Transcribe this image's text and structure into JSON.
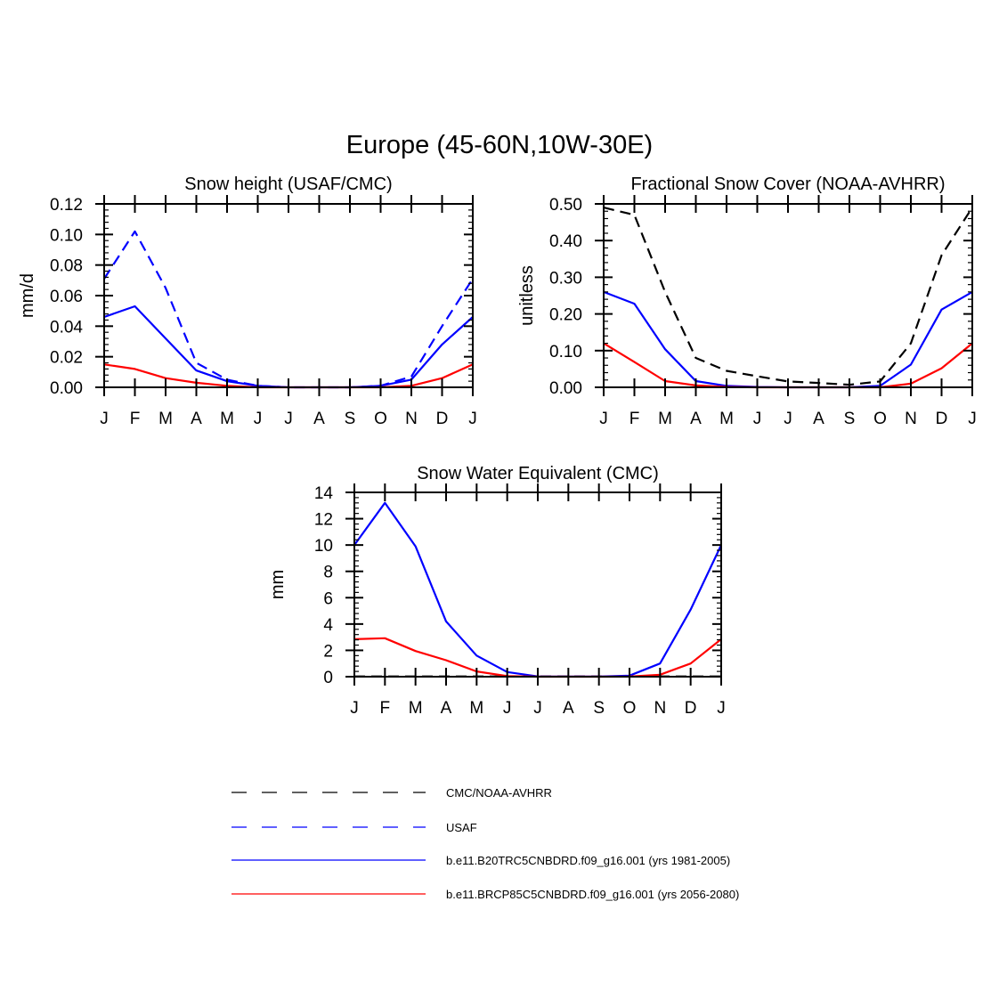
{
  "figure_title": "Europe (45-60N,10W-30E)",
  "legend": [
    {
      "label": "CMC/NOAA-AVHRR",
      "color": "#000000",
      "dash": "long"
    },
    {
      "label": "USAF",
      "color": "#0000ff",
      "dash": "long"
    },
    {
      "label": "b.e11.B20TRC5CNBDRD.f09_g16.001 (yrs 1981-2005)",
      "color": "#0000ff",
      "dash": "solid"
    },
    {
      "label": "b.e11.BRCP85C5CNBDRD.f09_g16.001 (yrs 2056-2080)",
      "color": "#ff0000",
      "dash": "solid"
    }
  ],
  "chart_data": [
    {
      "type": "line",
      "title": "Snow height (USAF/CMC)",
      "xlabel": "",
      "ylabel": "mm/d",
      "categories": [
        "J",
        "F",
        "M",
        "A",
        "M",
        "J",
        "J",
        "A",
        "S",
        "O",
        "N",
        "D",
        "J"
      ],
      "ylim": [
        0,
        0.12
      ],
      "yticks": [
        "0.00",
        "0.02",
        "0.04",
        "0.06",
        "0.08",
        "0.10",
        "0.12"
      ],
      "series": [
        {
          "name": "USAF",
          "color": "#0000ff",
          "dash": "dashed",
          "values": [
            0.071,
            0.102,
            0.065,
            0.016,
            0.005,
            0.001,
            0.0,
            0.0,
            0.0,
            0.001,
            0.007,
            0.04,
            0.071
          ]
        },
        {
          "name": "b.e11.B20TRC5CNBDRD.f09_g16.001 (yrs 1981-2005)",
          "color": "#0000ff",
          "dash": "solid",
          "values": [
            0.046,
            0.053,
            0.032,
            0.011,
            0.004,
            0.001,
            0.0,
            0.0,
            0.0,
            0.001,
            0.005,
            0.028,
            0.046
          ]
        },
        {
          "name": "b.e11.BRCP85C5CNBDRD.f09_g16.001 (yrs 2056-2080)",
          "color": "#ff0000",
          "dash": "solid",
          "values": [
            0.015,
            0.012,
            0.006,
            0.003,
            0.001,
            0.0,
            0.0,
            0.0,
            0.0,
            0.0,
            0.001,
            0.006,
            0.015
          ]
        }
      ]
    },
    {
      "type": "line",
      "title": "Fractional Snow Cover (NOAA-AVHRR)",
      "xlabel": "",
      "ylabel": "unitless",
      "categories": [
        "J",
        "F",
        "M",
        "A",
        "M",
        "J",
        "J",
        "A",
        "S",
        "O",
        "N",
        "D",
        "J"
      ],
      "ylim": [
        0,
        0.5
      ],
      "yticks": [
        "0.00",
        "0.10",
        "0.20",
        "0.30",
        "0.40",
        "0.50"
      ],
      "series": [
        {
          "name": "CMC/NOAA-AVHRR",
          "color": "#000000",
          "dash": "dashed",
          "values": [
            0.49,
            0.47,
            0.26,
            0.08,
            0.045,
            0.03,
            0.016,
            0.012,
            0.007,
            0.016,
            0.12,
            0.36,
            0.49
          ]
        },
        {
          "name": "b.e11.B20TRC5CNBDRD.f09_g16.001 (yrs 1981-2005)",
          "color": "#0000ff",
          "dash": "solid",
          "values": [
            0.26,
            0.228,
            0.104,
            0.017,
            0.004,
            0.001,
            0.0,
            0.0,
            0.0,
            0.004,
            0.062,
            0.212,
            0.26
          ]
        },
        {
          "name": "b.e11.BRCP85C5CNBDRD.f09_g16.001 (yrs 2056-2080)",
          "color": "#ff0000",
          "dash": "solid",
          "values": [
            0.12,
            0.069,
            0.017,
            0.005,
            0.001,
            0.0,
            0.0,
            0.0,
            0.0,
            0.0,
            0.01,
            0.052,
            0.12
          ]
        }
      ]
    },
    {
      "type": "line",
      "title": "Snow Water Equivalent (CMC)",
      "xlabel": "",
      "ylabel": "mm",
      "categories": [
        "J",
        "F",
        "M",
        "A",
        "M",
        "J",
        "J",
        "A",
        "S",
        "O",
        "N",
        "D",
        "J"
      ],
      "ylim": [
        0,
        14
      ],
      "yticks": [
        "0",
        "2",
        "4",
        "6",
        "8",
        "10",
        "12",
        "14"
      ],
      "series": [
        {
          "name": "CMC/NOAA-AVHRR",
          "color": "#000000",
          "dash": "dashed",
          "values": [
            0.02,
            0.02,
            0.02,
            0.02,
            0.02,
            0.02,
            0.02,
            0.02,
            0.02,
            0.02,
            0.02,
            0.02,
            0.02
          ]
        },
        {
          "name": "b.e11.B20TRC5CNBDRD.f09_g16.001 (yrs 1981-2005)",
          "color": "#0000ff",
          "dash": "solid",
          "values": [
            10.0,
            13.2,
            9.9,
            4.2,
            1.6,
            0.35,
            0.02,
            0.01,
            0.01,
            0.08,
            1.0,
            5.1,
            10.0
          ]
        },
        {
          "name": "b.e11.BRCP85C5CNBDRD.f09_g16.001 (yrs 2056-2080)",
          "color": "#ff0000",
          "dash": "solid",
          "values": [
            2.85,
            2.92,
            1.95,
            1.25,
            0.4,
            0.05,
            0.0,
            0.0,
            0.0,
            0.01,
            0.15,
            1.0,
            2.85
          ]
        }
      ]
    }
  ]
}
